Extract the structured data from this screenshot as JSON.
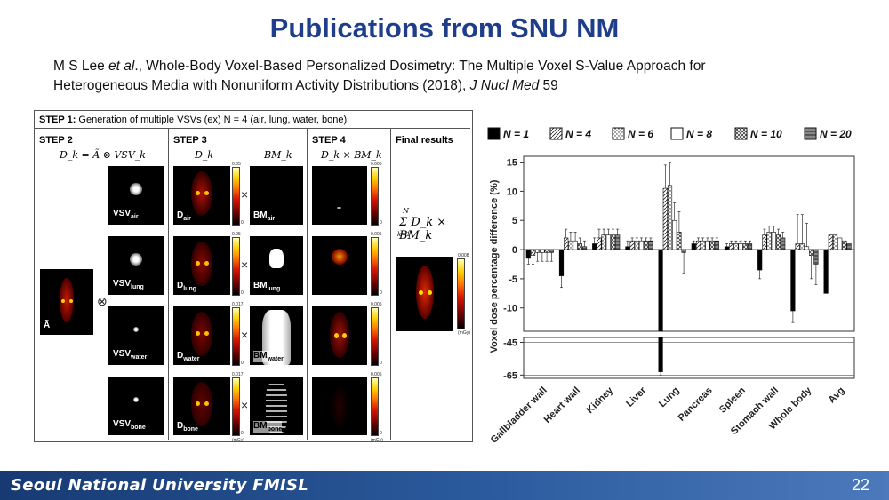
{
  "slide": {
    "title": "Publications from SNU NM",
    "citation_line1_prefix": "M S Lee ",
    "citation_etal": "et al",
    "citation_line1_suffix": "., Whole-Body Voxel-Based Personalized Dosimetry: The Multiple Voxel S-Value Approach for",
    "citation_line2_prefix": "Heterogeneous Media with Nonuniform Activity Distributions (2018), ",
    "citation_journal": "J Nucl Med",
    "citation_volume": " 59",
    "footer_org": "Seoul National University FMISL",
    "page_number": "22"
  },
  "figure": {
    "step1_bold": "STEP 1:",
    "step1_text": " Generation of multiple VSVs (ex) N = 4 (air, lung, water, bone)",
    "step2": "STEP 2",
    "step3": "STEP 3",
    "step4": "STEP 4",
    "final": "Final results",
    "formula_step2": "D_k = Ã ⊗ VSV_k",
    "formula_dk": "D_k",
    "formula_bmk": "BM_k",
    "formula_step4": "D_k × BM_k",
    "formula_final": "Σ D_k × BM_k",
    "sum_top": "N",
    "sum_bottom": "k=1",
    "a_tilde": "Ã",
    "otimes": "⊗",
    "times": "×",
    "vsv_base": "VSV",
    "d_base": "D",
    "bm_base": "BM",
    "rows": [
      {
        "sub": "air",
        "cbar_max": "0.05",
        "cbar4_max": "0.005"
      },
      {
        "sub": "lung",
        "cbar_max": "0.05",
        "cbar4_max": "0.005"
      },
      {
        "sub": "water",
        "cbar_max": "0.017",
        "cbar4_max": "0.005"
      },
      {
        "sub": "bone",
        "cbar_max": "0.017",
        "cbar4_max": "0.005"
      }
    ],
    "final_cbar_max": "0.008",
    "cbar_zero": "0",
    "cbar_unit": "(mGy)"
  },
  "chart_data": {
    "type": "bar",
    "ylabel": "Voxel dose percentage difference (%)",
    "yticks_upper": [
      15,
      10,
      5,
      0,
      -5,
      -10
    ],
    "yticks_lower": [
      -45,
      -65
    ],
    "ylim_upper": [
      -14,
      16
    ],
    "ylim_lower": [
      -67,
      -42
    ],
    "categories": [
      "Gallbladder wall",
      "Heart wall",
      "Kidney",
      "Liver",
      "Lung",
      "Pancreas",
      "Spleen",
      "Stomach wall",
      "Whole body",
      "Avg"
    ],
    "series": [
      {
        "name": "N = 1",
        "values": [
          -1.5,
          -4.5,
          1.0,
          0.5,
          -63.0,
          1.0,
          0.5,
          -3.5,
          -10.5,
          -7.5
        ],
        "errors": [
          1.0,
          2.0,
          1.0,
          1.0,
          2.0,
          0.5,
          0.5,
          1.5,
          2.0,
          0
        ]
      },
      {
        "name": "N = 4",
        "values": [
          -1.0,
          2.0,
          2.0,
          1.5,
          10.5,
          1.5,
          1.0,
          2.5,
          1.0,
          2.5
        ],
        "errors": [
          1.5,
          1.5,
          1.5,
          0.5,
          4.0,
          0.5,
          0.5,
          1.0,
          5.0,
          0
        ]
      },
      {
        "name": "N = 6",
        "values": [
          -0.5,
          1.5,
          2.5,
          1.5,
          11.0,
          1.5,
          1.0,
          3.0,
          1.0,
          2.5
        ],
        "errors": [
          1.5,
          1.5,
          1.0,
          0.5,
          4.0,
          0.5,
          0.5,
          1.0,
          5.0,
          0
        ]
      },
      {
        "name": "N = 8",
        "values": [
          -0.5,
          1.5,
          2.5,
          1.5,
          5.0,
          1.5,
          1.0,
          3.0,
          0.5,
          2.0
        ],
        "errors": [
          1.5,
          1.5,
          1.0,
          0.5,
          3.0,
          0.5,
          0.5,
          1.0,
          4.0,
          0
        ]
      },
      {
        "name": "N = 10",
        "values": [
          -0.5,
          1.0,
          2.5,
          1.5,
          3.0,
          1.5,
          1.0,
          2.5,
          -1.0,
          1.5
        ],
        "errors": [
          1.5,
          1.0,
          1.0,
          0.5,
          3.5,
          0.5,
          0.5,
          1.0,
          4.0,
          0
        ]
      },
      {
        "name": "N = 20",
        "values": [
          -0.5,
          0.5,
          2.5,
          1.5,
          -0.5,
          1.5,
          1.0,
          2.0,
          -2.5,
          1.0
        ],
        "errors": [
          1.5,
          1.0,
          1.0,
          0.5,
          3.5,
          0.5,
          0.5,
          1.0,
          3.5,
          0
        ]
      }
    ],
    "legend_placement": "top",
    "grid": false
  }
}
